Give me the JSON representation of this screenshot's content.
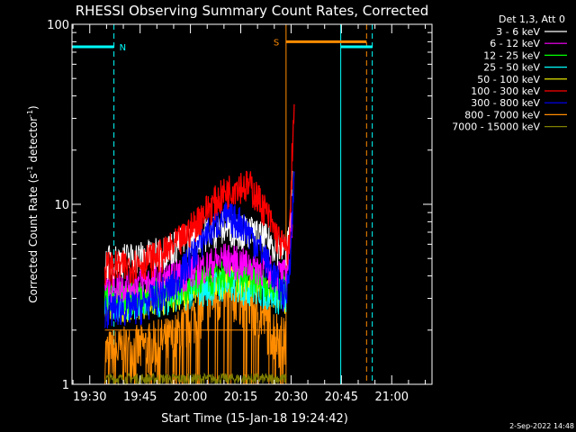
{
  "chart_data": {
    "type": "line",
    "title": "RHESSI Observing Summary Count Rates, Corrected",
    "xlabel": "Start Time (15-Jan-18 19:24:42)",
    "ylabel": "Corrected Count Rate (s⁻¹ detector⁻¹)",
    "ylabel_main": "Corrected Count Rate (s",
    "ylabel_sup1": "-1",
    "ylabel_mid": " detector",
    "ylabel_sup2": "-1",
    "ylabel_end": ")",
    "yscale": "log",
    "ylim": [
      1,
      100
    ],
    "yticks": [
      {
        "v": 1,
        "label": "1"
      },
      {
        "v": 10,
        "label": "10"
      },
      {
        "v": 100,
        "label": "100"
      }
    ],
    "xlim_minutes": [
      1164.7,
      1272
    ],
    "xticks": [
      {
        "m": 1170,
        "label": "19:30"
      },
      {
        "m": 1185,
        "label": "19:45"
      },
      {
        "m": 1200,
        "label": "20:00"
      },
      {
        "m": 1215,
        "label": "20:15"
      },
      {
        "m": 1230,
        "label": "20:30"
      },
      {
        "m": 1245,
        "label": "20:45"
      },
      {
        "m": 1260,
        "label": "21:00"
      }
    ],
    "legend_header": "Det 1,3, Att 0",
    "series": [
      {
        "name": "3 - 6 keV",
        "color": "#ffffff",
        "x": [
          1174.5,
          1181,
          1190,
          1200,
          1210,
          1218,
          1225,
          1228.5,
          1229.5,
          1230.5
        ],
        "y": [
          4.8,
          5,
          5.3,
          6.5,
          7.5,
          7,
          6,
          5.5,
          7,
          14
        ]
      },
      {
        "name": "6 - 12 keV",
        "color": "#ff00ff",
        "x": [
          1174.5,
          1190,
          1200,
          1210,
          1220,
          1228.5,
          1230.5
        ],
        "y": [
          3.5,
          3.8,
          4.2,
          5,
          4.5,
          4,
          9
        ]
      },
      {
        "name": "12 - 25 keV",
        "color": "#00ff00",
        "x": [
          1174.5,
          1190,
          1200,
          1210,
          1220,
          1228.5
        ],
        "y": [
          3,
          3.2,
          3.6,
          4,
          3.8,
          3.5
        ]
      },
      {
        "name": "25 - 50 keV",
        "color": "#00ffff",
        "x": [
          1174.5,
          1190,
          1200,
          1210,
          1220,
          1228.5
        ],
        "y": [
          2.8,
          3,
          3.3,
          3.6,
          3.4,
          3
        ]
      },
      {
        "name": "50 - 100 keV",
        "color": "#ffff00",
        "x": [
          1174.5,
          1190,
          1200,
          1210,
          1220,
          1228.5
        ],
        "y": [
          2.7,
          3,
          3.4,
          3.8,
          3.5,
          3
        ]
      },
      {
        "name": "100 - 300 keV",
        "color": "#ff0000",
        "x": [
          1174.5,
          1180,
          1186,
          1192,
          1198,
          1204,
          1210,
          1214,
          1218,
          1222,
          1226,
          1228.5,
          1229.5,
          1230,
          1230.5,
          1231
        ],
        "y": [
          4.5,
          4.5,
          4.8,
          5.3,
          6.5,
          9,
          11.5,
          13,
          12.5,
          9.5,
          6.5,
          5.5,
          6,
          12,
          25,
          35
        ]
      },
      {
        "name": "300 - 800 keV",
        "color": "#0000ff",
        "x": [
          1174.5,
          1185,
          1195,
          1200,
          1205,
          1210,
          1215,
          1220,
          1225,
          1228.5,
          1230,
          1231
        ],
        "y": [
          2.6,
          2.7,
          3.5,
          5,
          7,
          8.5,
          8,
          6,
          4,
          3,
          6,
          16
        ]
      },
      {
        "name": "800 - 7000 keV",
        "color": "#ff8c00",
        "x": [
          1174.5,
          1185,
          1195,
          1200,
          1205,
          1210,
          1215,
          1220,
          1225,
          1228.5
        ],
        "y": [
          1.5,
          1.6,
          1.8,
          2.3,
          2.9,
          3.3,
          3.2,
          2.6,
          2,
          1.7
        ]
      },
      {
        "name": "7000 - 15000 keV",
        "color": "#808000",
        "x": [
          1174.5,
          1200,
          1228.5
        ],
        "y": [
          1.05,
          1.1,
          1.05
        ]
      }
    ],
    "background_level_series": {
      "x": [
        1174.5,
        1228.5
      ],
      "y": [
        2,
        2
      ]
    },
    "annotations": [
      {
        "label": "N",
        "color": "#00ffff",
        "x_start": 1164.7,
        "x_end": 1177.2,
        "y": 75
      },
      {
        "label": "S",
        "color": "#ff8c00",
        "x_start": 1228.5,
        "x_end": 1252.5,
        "y": 80
      },
      {
        "label": "",
        "color": "#00ffff",
        "x_start": 1244.8,
        "x_end": 1254.2,
        "y": 75
      }
    ],
    "vlines": [
      {
        "color": "#00ffff",
        "x": 1177.2,
        "style": "dashed"
      },
      {
        "color": "#00ffff",
        "x": 1244.8,
        "style": "solid"
      },
      {
        "color": "#00ffff",
        "x": 1254.2,
        "style": "dashed"
      },
      {
        "color": "#ff8c00",
        "x": 1228.5,
        "style": "solid"
      },
      {
        "color": "#ff8c00",
        "x": 1252.5,
        "style": "dashed"
      }
    ],
    "grid": false,
    "legend_position": "top-right",
    "footer_date": "2-Sep-2022 14:48"
  }
}
